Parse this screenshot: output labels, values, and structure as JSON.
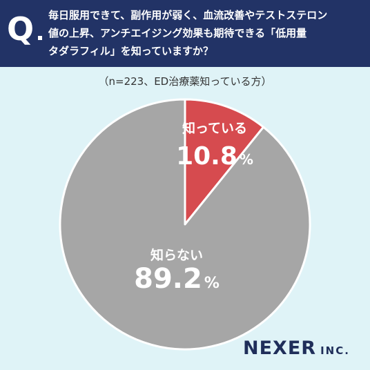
{
  "header": {
    "q_mark": "Q",
    "question_lines": [
      "毎日服用できて、副作用が弱く、血流改善やテストステロン",
      "値の上昇、アンチエイジング効果も期待できる「低用量",
      "タダラフィル」を知っていますか？"
    ]
  },
  "subtitle": "（n=223、ED治療薬知っている方）",
  "chart_data": {
    "type": "pie",
    "title": "",
    "slices": [
      {
        "label": "知っている",
        "value": 10.8,
        "value_text": "10.8",
        "unit": "%",
        "color": "#d64b4f"
      },
      {
        "label": "知らない",
        "value": 89.2,
        "value_text": "89.2",
        "unit": "%",
        "color": "#a6a6a6"
      }
    ],
    "start": "12 o'clock",
    "direction": "clockwise"
  },
  "logo": {
    "main": "NEXER",
    "suffix": "INC."
  },
  "colors": {
    "header_bg": "#223366",
    "background": "#dff3f7",
    "separator": "#ffffff"
  }
}
